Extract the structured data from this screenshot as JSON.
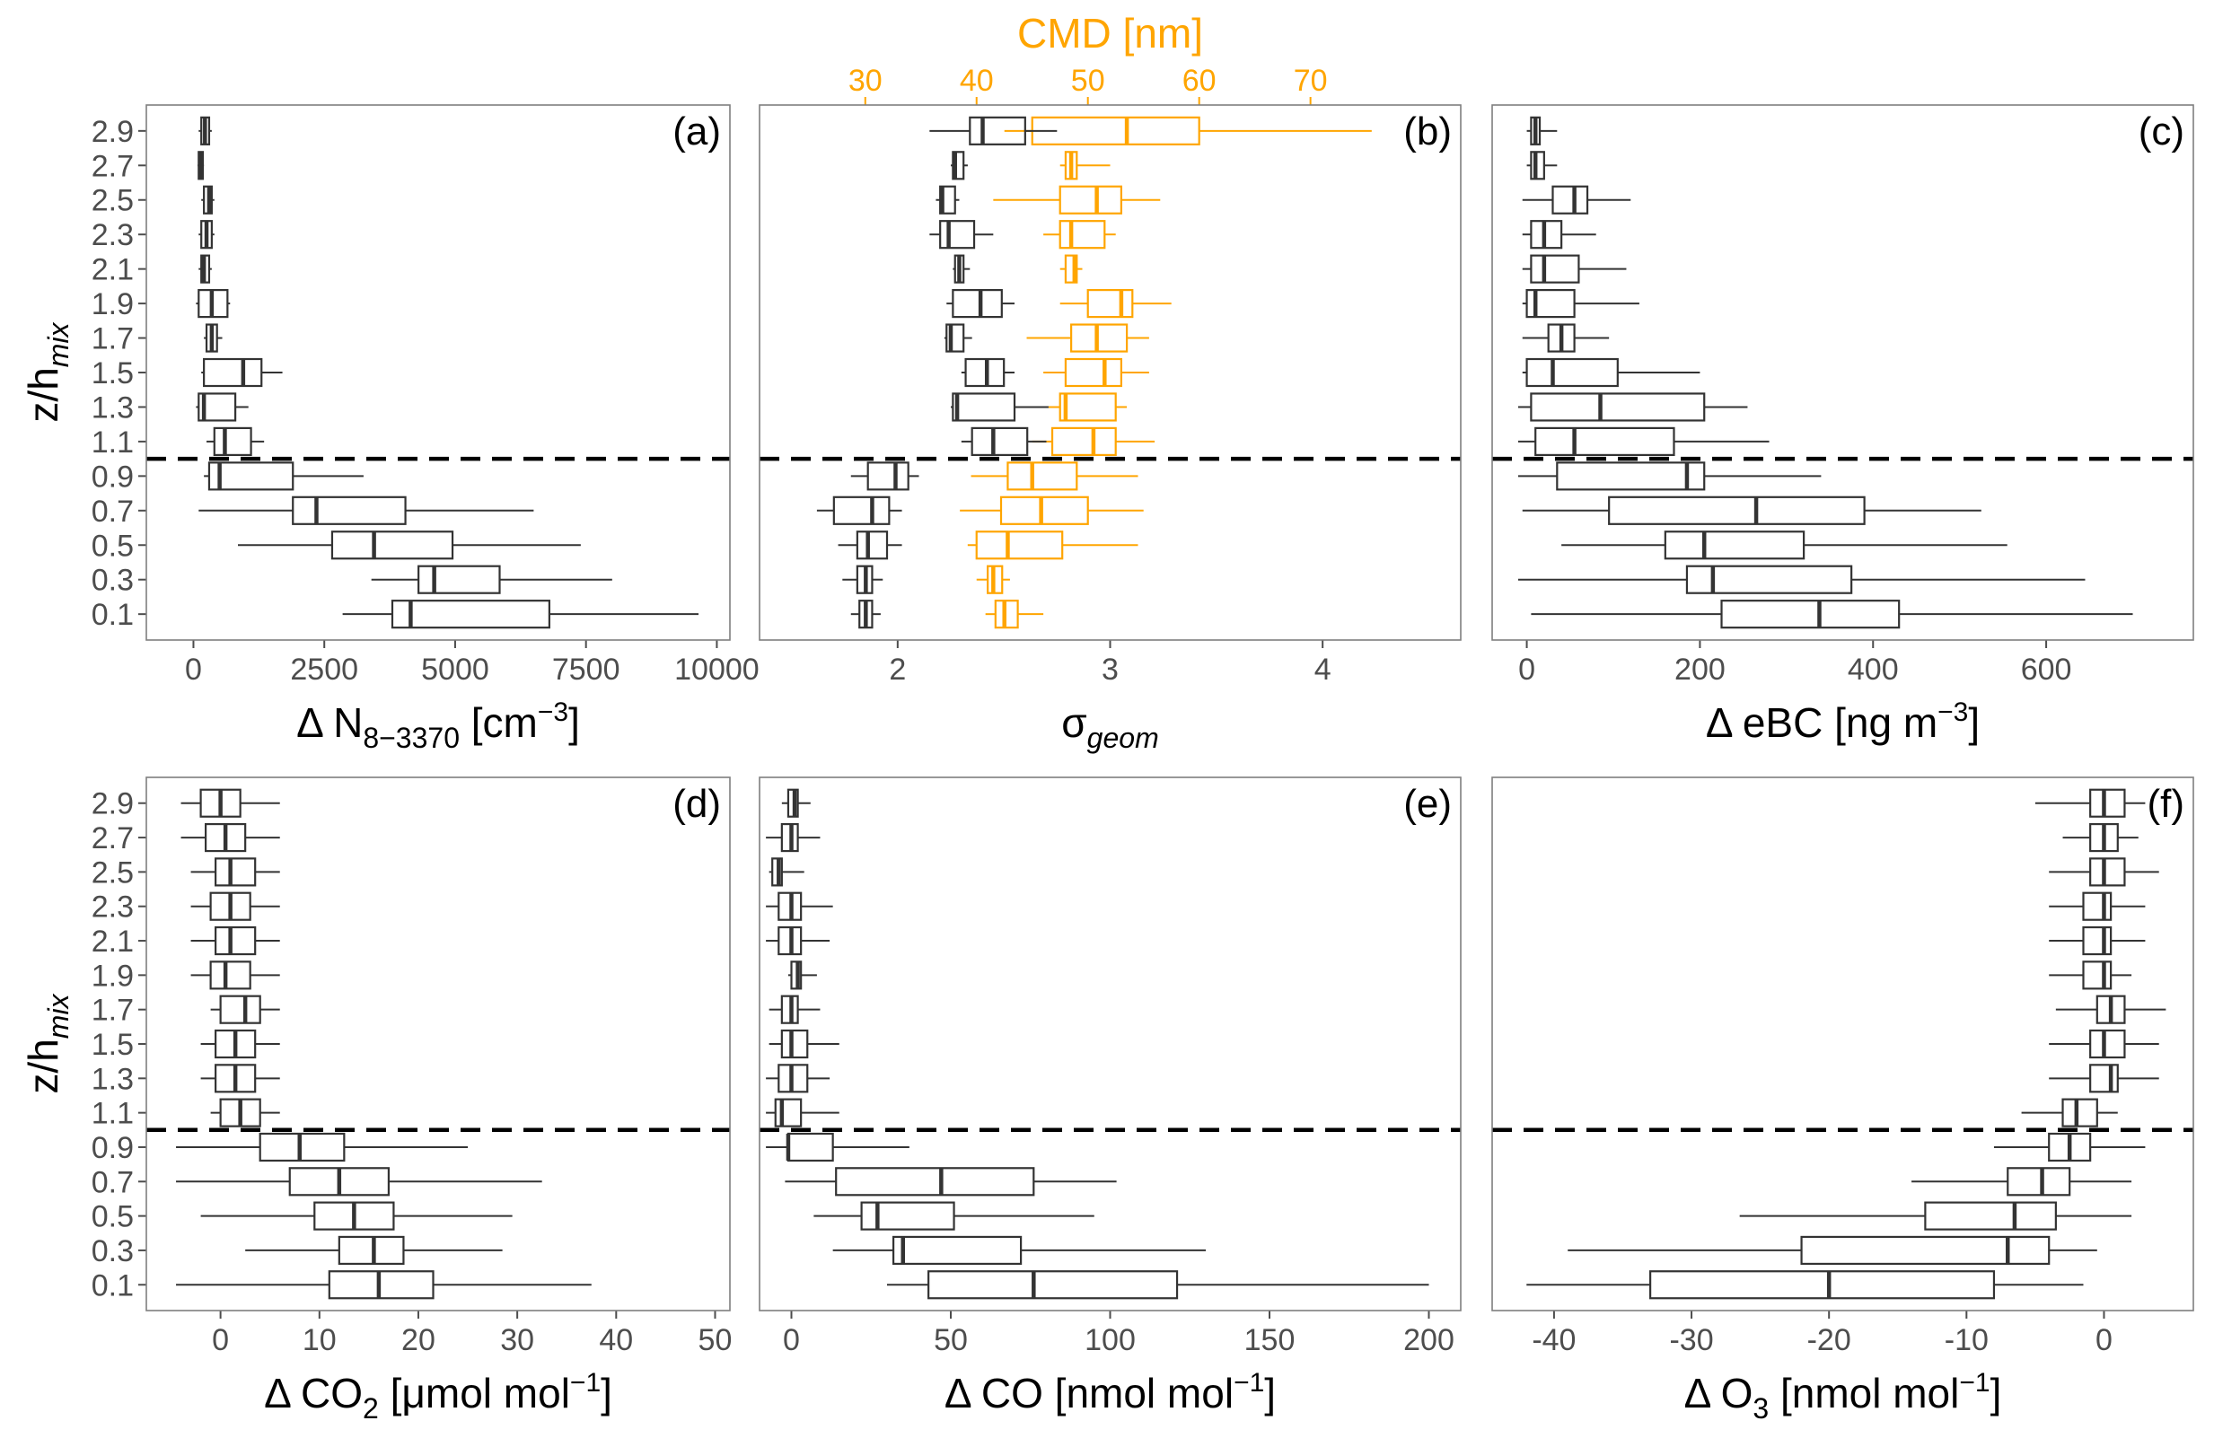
{
  "figure": {
    "y_title_base": "z/h",
    "y_title_sub": "mix",
    "top_axis_title": "CMD [nm]",
    "colors": {
      "box": "#333333",
      "cmd": "#FFA500",
      "tick_text": "#4d4d4d",
      "frame": "#7f7f7f",
      "boundary": "#000000"
    }
  },
  "chart_data": [
    {
      "panel": "a",
      "type": "boxplot",
      "tag": "(a)",
      "xlabel_pre": "Δ N",
      "xlabel_sub": "8−3370",
      "xlabel_post": " [cm",
      "xlabel_sup": "−3",
      "xlabel_end": "]",
      "xlim": [
        -900,
        10250
      ],
      "xticks": [
        0,
        2500,
        5000,
        7500,
        10000
      ],
      "ylabels": [
        "0.1",
        "0.3",
        "0.5",
        "0.7",
        "0.9",
        "1.1",
        "1.3",
        "1.5",
        "1.7",
        "1.9",
        "2.1",
        "2.3",
        "2.5",
        "2.7",
        "2.9"
      ],
      "boundary_z": 1.0,
      "boxes": [
        {
          "z": 0.1,
          "min": 2850,
          "q1": 3800,
          "med": 4150,
          "q3": 6800,
          "max": 9650
        },
        {
          "z": 0.3,
          "min": 3400,
          "q1": 4300,
          "med": 4600,
          "q3": 5850,
          "max": 8000
        },
        {
          "z": 0.5,
          "min": 850,
          "q1": 2650,
          "med": 3450,
          "q3": 4950,
          "max": 7400
        },
        {
          "z": 0.7,
          "min": 100,
          "q1": 1900,
          "med": 2350,
          "q3": 4050,
          "max": 6500
        },
        {
          "z": 0.9,
          "min": 200,
          "q1": 300,
          "med": 500,
          "q3": 1900,
          "max": 3250
        },
        {
          "z": 1.1,
          "min": 250,
          "q1": 400,
          "med": 600,
          "q3": 1100,
          "max": 1350
        },
        {
          "z": 1.3,
          "min": 50,
          "q1": 100,
          "med": 200,
          "q3": 800,
          "max": 1050
        },
        {
          "z": 1.5,
          "min": 150,
          "q1": 200,
          "med": 950,
          "q3": 1300,
          "max": 1700
        },
        {
          "z": 1.7,
          "min": 200,
          "q1": 250,
          "med": 350,
          "q3": 450,
          "max": 550
        },
        {
          "z": 1.9,
          "min": 50,
          "q1": 100,
          "med": 350,
          "q3": 650,
          "max": 700
        },
        {
          "z": 2.1,
          "min": 100,
          "q1": 150,
          "med": 200,
          "q3": 300,
          "max": 350
        },
        {
          "z": 2.3,
          "min": 100,
          "q1": 150,
          "med": 250,
          "q3": 350,
          "max": 400
        },
        {
          "z": 2.5,
          "min": 150,
          "q1": 200,
          "med": 300,
          "q3": 350,
          "max": 400
        },
        {
          "z": 2.7,
          "min": 80,
          "q1": 100,
          "med": 130,
          "q3": 180,
          "max": 200
        },
        {
          "z": 2.9,
          "min": 100,
          "q1": 150,
          "med": 220,
          "q3": 300,
          "max": 350
        }
      ]
    },
    {
      "panel": "b",
      "type": "boxplot",
      "tag": "(b)",
      "xlabel_pre": "σ",
      "xlabel_sub": "geom",
      "xlim": [
        1.35,
        4.65
      ],
      "xticks": [
        2,
        3,
        4
      ],
      "top_axis": {
        "label": "CMD [nm]",
        "xlim": [
          20.5,
          83.5
        ],
        "xticks": [
          30,
          40,
          50,
          60,
          70
        ]
      },
      "ylabels": [
        "0.1",
        "0.3",
        "0.5",
        "0.7",
        "0.9",
        "1.1",
        "1.3",
        "1.5",
        "1.7",
        "1.9",
        "2.1",
        "2.3",
        "2.5",
        "2.7",
        "2.9"
      ],
      "boundary_z": 1.0,
      "boxes": [
        {
          "z": 0.1,
          "min": 1.78,
          "q1": 1.82,
          "med": 1.85,
          "q3": 1.88,
          "max": 1.92
        },
        {
          "z": 0.3,
          "min": 1.74,
          "q1": 1.81,
          "med": 1.85,
          "q3": 1.88,
          "max": 1.93
        },
        {
          "z": 0.5,
          "min": 1.72,
          "q1": 1.81,
          "med": 1.86,
          "q3": 1.95,
          "max": 2.02
        },
        {
          "z": 0.7,
          "min": 1.62,
          "q1": 1.7,
          "med": 1.88,
          "q3": 1.96,
          "max": 2.02
        },
        {
          "z": 0.9,
          "min": 1.78,
          "q1": 1.86,
          "med": 1.99,
          "q3": 2.05,
          "max": 2.1
        },
        {
          "z": 1.1,
          "min": 2.3,
          "q1": 2.35,
          "med": 2.45,
          "q3": 2.61,
          "max": 2.7
        },
        {
          "z": 1.3,
          "min": 2.25,
          "q1": 2.26,
          "med": 2.28,
          "q3": 2.55,
          "max": 2.71
        },
        {
          "z": 1.5,
          "min": 2.3,
          "q1": 2.32,
          "med": 2.42,
          "q3": 2.5,
          "max": 2.55
        },
        {
          "z": 1.7,
          "min": 2.22,
          "q1": 2.23,
          "med": 2.25,
          "q3": 2.31,
          "max": 2.35
        },
        {
          "z": 1.9,
          "min": 2.23,
          "q1": 2.26,
          "med": 2.39,
          "q3": 2.49,
          "max": 2.55
        },
        {
          "z": 2.1,
          "min": 2.26,
          "q1": 2.27,
          "med": 2.29,
          "q3": 2.31,
          "max": 2.34
        },
        {
          "z": 2.3,
          "min": 2.15,
          "q1": 2.2,
          "med": 2.24,
          "q3": 2.36,
          "max": 2.45
        },
        {
          "z": 2.5,
          "min": 2.18,
          "q1": 2.2,
          "med": 2.21,
          "q3": 2.27,
          "max": 2.29
        },
        {
          "z": 2.7,
          "min": 2.25,
          "q1": 2.26,
          "med": 2.27,
          "q3": 2.31,
          "max": 2.33
        },
        {
          "z": 2.9,
          "min": 2.15,
          "q1": 2.34,
          "med": 2.4,
          "q3": 2.6,
          "max": 2.75
        }
      ],
      "cmd_boxes": [
        {
          "z": 0.1,
          "min": 40.8,
          "q1": 41.7,
          "med": 42.5,
          "q3": 43.7,
          "max": 46.0
        },
        {
          "z": 0.3,
          "min": 40.0,
          "q1": 41.0,
          "med": 41.5,
          "q3": 42.3,
          "max": 43.0
        },
        {
          "z": 0.5,
          "min": 39.2,
          "q1": 40.0,
          "med": 42.8,
          "q3": 47.7,
          "max": 54.5
        },
        {
          "z": 0.7,
          "min": 38.5,
          "q1": 42.2,
          "med": 45.8,
          "q3": 50.0,
          "max": 55.0
        },
        {
          "z": 0.9,
          "min": 39.5,
          "q1": 42.8,
          "med": 45.0,
          "q3": 49.0,
          "max": 54.5
        },
        {
          "z": 1.1,
          "min": 45.0,
          "q1": 46.8,
          "med": 50.5,
          "q3": 52.5,
          "max": 56.0
        },
        {
          "z": 1.3,
          "min": 46.0,
          "q1": 47.5,
          "med": 48.0,
          "q3": 52.5,
          "max": 53.5
        },
        {
          "z": 1.5,
          "min": 46.0,
          "q1": 48.0,
          "med": 51.5,
          "q3": 53.0,
          "max": 55.5
        },
        {
          "z": 1.7,
          "min": 44.5,
          "q1": 48.5,
          "med": 50.8,
          "q3": 53.5,
          "max": 55.5
        },
        {
          "z": 1.9,
          "min": 47.5,
          "q1": 50.0,
          "med": 53.0,
          "q3": 54.0,
          "max": 57.5
        },
        {
          "z": 2.1,
          "min": 47.5,
          "q1": 48.0,
          "med": 48.8,
          "q3": 49.0,
          "max": 49.5
        },
        {
          "z": 2.3,
          "min": 46.0,
          "q1": 47.5,
          "med": 48.5,
          "q3": 51.5,
          "max": 52.5
        },
        {
          "z": 2.5,
          "min": 41.5,
          "q1": 47.5,
          "med": 50.8,
          "q3": 53.0,
          "max": 56.5
        },
        {
          "z": 2.7,
          "min": 47.5,
          "q1": 48.0,
          "med": 48.5,
          "q3": 49.0,
          "max": 52.0
        },
        {
          "z": 2.9,
          "min": 42.5,
          "q1": 45.0,
          "med": 53.5,
          "q3": 60.0,
          "max": 75.5
        }
      ]
    },
    {
      "panel": "c",
      "type": "boxplot",
      "tag": "(c)",
      "xlabel_pre": "Δ eBC [ng m",
      "xlabel_sup": "−3",
      "xlabel_end": "]",
      "xlim": [
        -40,
        770
      ],
      "xticks": [
        0,
        200,
        400,
        600
      ],
      "ylabels": [
        "0.1",
        "0.3",
        "0.5",
        "0.7",
        "0.9",
        "1.1",
        "1.3",
        "1.5",
        "1.7",
        "1.9",
        "2.1",
        "2.3",
        "2.5",
        "2.7",
        "2.9"
      ],
      "boundary_z": 1.0,
      "boxes": [
        {
          "z": 0.1,
          "min": 5,
          "q1": 225,
          "med": 338,
          "q3": 430,
          "max": 700
        },
        {
          "z": 0.3,
          "min": -10,
          "q1": 185,
          "med": 215,
          "q3": 375,
          "max": 645
        },
        {
          "z": 0.5,
          "min": 40,
          "q1": 160,
          "med": 205,
          "q3": 320,
          "max": 555
        },
        {
          "z": 0.7,
          "min": -5,
          "q1": 95,
          "med": 265,
          "q3": 390,
          "max": 525
        },
        {
          "z": 0.9,
          "min": -10,
          "q1": 35,
          "med": 185,
          "q3": 205,
          "max": 340
        },
        {
          "z": 1.1,
          "min": -10,
          "q1": 10,
          "med": 55,
          "q3": 170,
          "max": 280
        },
        {
          "z": 1.3,
          "min": -10,
          "q1": 5,
          "med": 85,
          "q3": 205,
          "max": 255
        },
        {
          "z": 1.5,
          "min": -5,
          "q1": 0,
          "med": 30,
          "q3": 105,
          "max": 200
        },
        {
          "z": 1.7,
          "min": -5,
          "q1": 25,
          "med": 40,
          "q3": 55,
          "max": 95
        },
        {
          "z": 1.9,
          "min": -5,
          "q1": 0,
          "med": 10,
          "q3": 55,
          "max": 130
        },
        {
          "z": 2.1,
          "min": -5,
          "q1": 5,
          "med": 20,
          "q3": 60,
          "max": 115
        },
        {
          "z": 2.3,
          "min": -5,
          "q1": 5,
          "med": 20,
          "q3": 40,
          "max": 80
        },
        {
          "z": 2.5,
          "min": -5,
          "q1": 30,
          "med": 55,
          "q3": 70,
          "max": 120
        },
        {
          "z": 2.7,
          "min": 0,
          "q1": 5,
          "med": 10,
          "q3": 20,
          "max": 35
        },
        {
          "z": 2.9,
          "min": 0,
          "q1": 5,
          "med": 10,
          "q3": 15,
          "max": 35
        }
      ]
    },
    {
      "panel": "d",
      "type": "boxplot",
      "tag": "(d)",
      "xlabel_pre": "Δ CO",
      "xlabel_sub": "2",
      "xlabel_post": " [μmol mol",
      "xlabel_sup": "−1",
      "xlabel_end": "]",
      "xlim": [
        -7.5,
        51.5
      ],
      "xticks": [
        0,
        10,
        20,
        30,
        40,
        50
      ],
      "ylabels": [
        "0.1",
        "0.3",
        "0.5",
        "0.7",
        "0.9",
        "1.1",
        "1.3",
        "1.5",
        "1.7",
        "1.9",
        "2.1",
        "2.3",
        "2.5",
        "2.7",
        "2.9"
      ],
      "boundary_z": 1.0,
      "boxes": [
        {
          "z": 0.1,
          "min": -4.5,
          "q1": 11,
          "med": 16,
          "q3": 21.5,
          "max": 37.5
        },
        {
          "z": 0.3,
          "min": 2.5,
          "q1": 12,
          "med": 15.5,
          "q3": 18.5,
          "max": 28.5
        },
        {
          "z": 0.5,
          "min": -2,
          "q1": 9.5,
          "med": 13.5,
          "q3": 17.5,
          "max": 29.5
        },
        {
          "z": 0.7,
          "min": -4.5,
          "q1": 7,
          "med": 12,
          "q3": 17,
          "max": 32.5
        },
        {
          "z": 0.9,
          "min": -4.5,
          "q1": 4,
          "med": 8,
          "q3": 12.5,
          "max": 25
        },
        {
          "z": 1.1,
          "min": -1,
          "q1": 0,
          "med": 2,
          "q3": 4,
          "max": 6
        },
        {
          "z": 1.3,
          "min": -2,
          "q1": -0.5,
          "med": 1.5,
          "q3": 3.5,
          "max": 6
        },
        {
          "z": 1.5,
          "min": -2,
          "q1": -0.5,
          "med": 1.5,
          "q3": 3.5,
          "max": 6
        },
        {
          "z": 1.7,
          "min": -1,
          "q1": 0,
          "med": 2.5,
          "q3": 4,
          "max": 6
        },
        {
          "z": 1.9,
          "min": -3,
          "q1": -1,
          "med": 0.5,
          "q3": 3,
          "max": 6
        },
        {
          "z": 2.1,
          "min": -3,
          "q1": -0.5,
          "med": 1,
          "q3": 3.5,
          "max": 6
        },
        {
          "z": 2.3,
          "min": -3,
          "q1": -1,
          "med": 1,
          "q3": 3,
          "max": 6
        },
        {
          "z": 2.5,
          "min": -3,
          "q1": -0.5,
          "med": 1,
          "q3": 3.5,
          "max": 6
        },
        {
          "z": 2.7,
          "min": -4,
          "q1": -1.5,
          "med": 0.5,
          "q3": 2.5,
          "max": 6
        },
        {
          "z": 2.9,
          "min": -4,
          "q1": -2,
          "med": 0,
          "q3": 2,
          "max": 6
        }
      ]
    },
    {
      "panel": "e",
      "type": "boxplot",
      "tag": "(e)",
      "xlabel_pre": "Δ CO [nmol mol",
      "xlabel_sup": "−1",
      "xlabel_end": "]",
      "xlim": [
        -10,
        210
      ],
      "xticks": [
        0,
        50,
        100,
        150,
        200
      ],
      "ylabels": [
        "0.1",
        "0.3",
        "0.5",
        "0.7",
        "0.9",
        "1.1",
        "1.3",
        "1.5",
        "1.7",
        "1.9",
        "2.1",
        "2.3",
        "2.5",
        "2.7",
        "2.9"
      ],
      "boundary_z": 1.0,
      "boxes": [
        {
          "z": 0.1,
          "min": 30,
          "q1": 43,
          "med": 76,
          "q3": 121,
          "max": 200
        },
        {
          "z": 0.3,
          "min": 13,
          "q1": 32,
          "med": 35,
          "q3": 72,
          "max": 130
        },
        {
          "z": 0.5,
          "min": 7,
          "q1": 22,
          "med": 27,
          "q3": 51,
          "max": 95
        },
        {
          "z": 0.7,
          "min": -2,
          "q1": 14,
          "med": 47,
          "q3": 76,
          "max": 102
        },
        {
          "z": 0.9,
          "min": -8,
          "q1": -1,
          "med": -1,
          "q3": 13,
          "max": 37
        },
        {
          "z": 1.1,
          "min": -8,
          "q1": -5,
          "med": -3,
          "q3": 3,
          "max": 15
        },
        {
          "z": 1.3,
          "min": -8,
          "q1": -4,
          "med": 0,
          "q3": 5,
          "max": 12
        },
        {
          "z": 1.5,
          "min": -7,
          "q1": -3,
          "med": 0,
          "q3": 5,
          "max": 15
        },
        {
          "z": 1.7,
          "min": -7,
          "q1": -3,
          "med": 0,
          "q3": 2,
          "max": 9
        },
        {
          "z": 1.9,
          "min": -1,
          "q1": 0,
          "med": 2,
          "q3": 3,
          "max": 8
        },
        {
          "z": 2.1,
          "min": -8,
          "q1": -4,
          "med": 0,
          "q3": 3,
          "max": 12
        },
        {
          "z": 2.3,
          "min": -8,
          "q1": -4,
          "med": 0,
          "q3": 3,
          "max": 13
        },
        {
          "z": 2.5,
          "min": -7,
          "q1": -6,
          "med": -4,
          "q3": -3,
          "max": 4
        },
        {
          "z": 2.7,
          "min": -8,
          "q1": -3,
          "med": 0,
          "q3": 2,
          "max": 9
        },
        {
          "z": 2.9,
          "min": -3,
          "q1": -1,
          "med": 1,
          "q3": 2,
          "max": 6
        }
      ]
    },
    {
      "panel": "f",
      "type": "boxplot",
      "tag": "(f)",
      "xlabel_pre": "Δ O",
      "xlabel_sub": "3",
      "xlabel_post": " [nmol mol",
      "xlabel_sup": "−1",
      "xlabel_end": "]",
      "xlim": [
        -44.5,
        6.5
      ],
      "xticks": [
        -40,
        -30,
        -20,
        -10,
        0
      ],
      "ylabels": [
        "0.1",
        "0.3",
        "0.5",
        "0.7",
        "0.9",
        "1.1",
        "1.3",
        "1.5",
        "1.7",
        "1.9",
        "2.1",
        "2.3",
        "2.5",
        "2.7",
        "2.9"
      ],
      "boundary_z": 1.0,
      "boxes": [
        {
          "z": 0.1,
          "min": -42,
          "q1": -33,
          "med": -20,
          "q3": -8,
          "max": -1.5
        },
        {
          "z": 0.3,
          "min": -39,
          "q1": -22,
          "med": -7,
          "q3": -4,
          "max": -0.5
        },
        {
          "z": 0.5,
          "min": -26.5,
          "q1": -13,
          "med": -6.5,
          "q3": -3.5,
          "max": 2
        },
        {
          "z": 0.7,
          "min": -14,
          "q1": -7,
          "med": -4.5,
          "q3": -2.5,
          "max": 2
        },
        {
          "z": 0.9,
          "min": -8,
          "q1": -4,
          "med": -2.5,
          "q3": -1,
          "max": 3
        },
        {
          "z": 1.1,
          "min": -6,
          "q1": -3,
          "med": -2,
          "q3": -0.5,
          "max": 1
        },
        {
          "z": 1.3,
          "min": -4,
          "q1": -1,
          "med": 0.5,
          "q3": 1,
          "max": 4
        },
        {
          "z": 1.5,
          "min": -4,
          "q1": -1,
          "med": 0,
          "q3": 1.5,
          "max": 4
        },
        {
          "z": 1.7,
          "min": -3.5,
          "q1": -0.5,
          "med": 0.5,
          "q3": 1.5,
          "max": 4.5
        },
        {
          "z": 1.9,
          "min": -4,
          "q1": -1.5,
          "med": 0,
          "q3": 0.5,
          "max": 2
        },
        {
          "z": 2.1,
          "min": -4,
          "q1": -1.5,
          "med": 0,
          "q3": 0.5,
          "max": 3
        },
        {
          "z": 2.3,
          "min": -4,
          "q1": -1.5,
          "med": 0,
          "q3": 0.5,
          "max": 3
        },
        {
          "z": 2.5,
          "min": -4,
          "q1": -1,
          "med": 0,
          "q3": 1.5,
          "max": 4
        },
        {
          "z": 2.7,
          "min": -3,
          "q1": -1,
          "med": 0,
          "q3": 1,
          "max": 2.5
        },
        {
          "z": 2.9,
          "min": -5,
          "q1": -1,
          "med": 0,
          "q3": 1.5,
          "max": 3
        }
      ]
    }
  ]
}
